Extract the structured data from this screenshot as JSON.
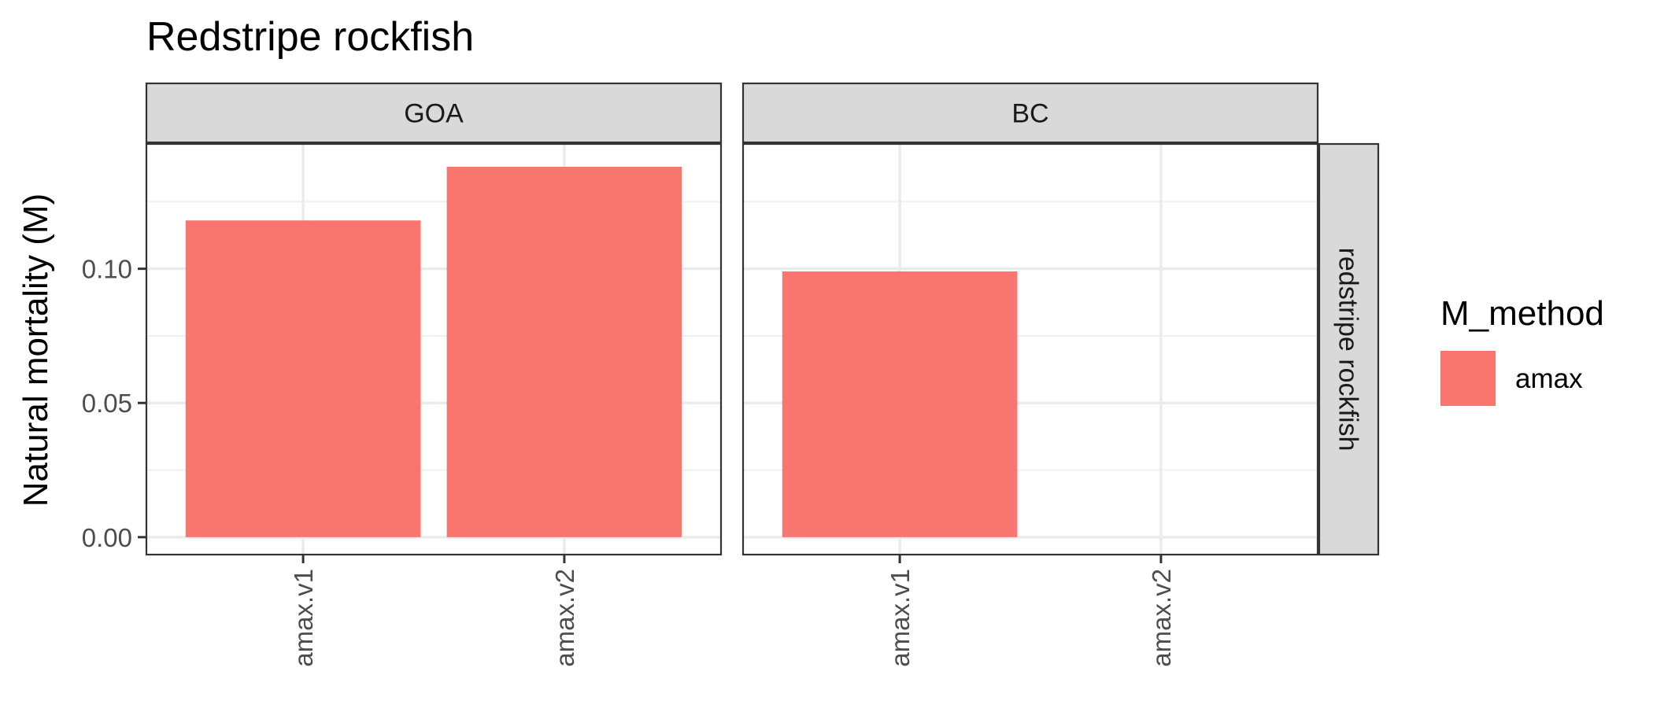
{
  "chart_data": {
    "type": "bar",
    "title": "Redstripe rockfish",
    "ylabel": "Natural mortality (M)",
    "xlabel": "",
    "categories": [
      "amax.v1",
      "amax.v2"
    ],
    "ylim": [
      0,
      0.14
    ],
    "yticks": [
      0.0,
      0.05,
      0.1
    ],
    "ytick_labels": [
      "0.00",
      "0.05",
      "0.10"
    ],
    "grid": true,
    "row_facet": "redstripe rockfish",
    "panels": [
      {
        "name": "GOA",
        "values": [
          0.118,
          0.138
        ]
      },
      {
        "name": "BC",
        "values": [
          0.099,
          null
        ]
      }
    ],
    "legend": {
      "title": "M_method",
      "entries": [
        {
          "name": "amax",
          "color": "#F8766D"
        }
      ],
      "position": "right"
    },
    "bar_color": "#F8766D"
  }
}
